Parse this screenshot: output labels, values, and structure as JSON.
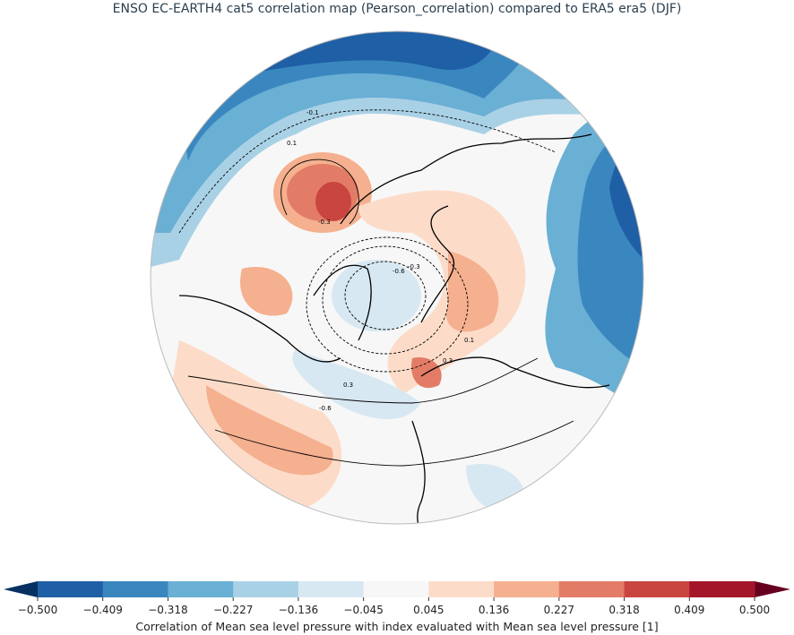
{
  "title": "ENSO EC-EARTH4 cat5 correlation map (Pearson_correlation) compared to ERA5 era5 (DJF)",
  "colorbar": {
    "ticks": [
      "−0.500",
      "−0.409",
      "−0.318",
      "−0.227",
      "−0.136",
      "−0.045",
      "0.045",
      "0.136",
      "0.227",
      "0.318",
      "0.409",
      "0.500"
    ],
    "colors": [
      "#1f5fa5",
      "#3a87c0",
      "#6aafd4",
      "#a9d1e6",
      "#d8e8f2",
      "#f7f7f7",
      "#fcdcc9",
      "#f5b08f",
      "#e37c66",
      "#c9453f",
      "#a5152a"
    ],
    "extend_low": "#053061",
    "extend_high": "#67001f",
    "label": "Correlation of Mean sea level pressure with index evaluated with Mean sea level pressure [1]"
  },
  "contour_labels": [
    "-0.1",
    "0.1",
    "-0.3",
    "-0.6",
    "-0.3",
    "0.1",
    "0.3",
    "0.3",
    "-0.6"
  ]
}
